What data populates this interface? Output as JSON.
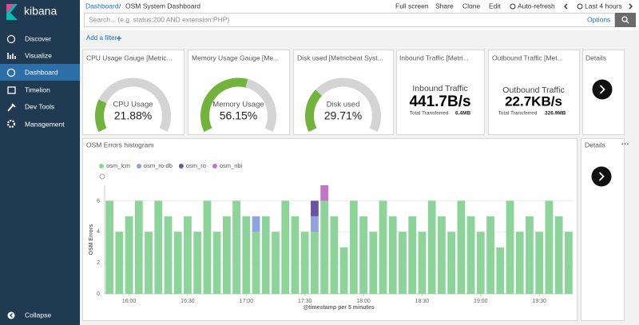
{
  "sidebar": {
    "brand": "kibana",
    "items": [
      "Discover",
      "Visualize",
      "Dashboard",
      "Timelion",
      "Dev Tools",
      "Management"
    ],
    "collapse": "Collapse"
  },
  "header": {
    "breadcrumb": [
      "Dashboard",
      "OSM System Dashboard"
    ],
    "separator": "/",
    "menu": [
      "Full screen",
      "Share",
      "Clone",
      "Edit",
      "Auto-refresh",
      "Last 4 hours"
    ]
  },
  "search": {
    "placeholder": "Search... (e.g. status:200 AND extension:PHP)",
    "options": "Options"
  },
  "filter": {
    "add": "Add a filter"
  },
  "gauges": [
    {
      "title": "CPU Usage Gauge [Metric...",
      "label": "CPU Usage",
      "value": 21.88,
      "value_label": "21.88%",
      "range": [
        0,
        100
      ],
      "color": "#72b33e"
    },
    {
      "title": "Memory Usage Gauge [Me...",
      "label": "Memory Usage",
      "value": 56.15,
      "value_label": "56.15%",
      "range": [
        0,
        100
      ],
      "color": "#72b33e"
    },
    {
      "title": "Disk used [Metricbeat Syst...",
      "label": "Disk used",
      "value": 29.71,
      "value_label": "29.71%",
      "range": [
        0,
        100
      ],
      "color": "#72b33e"
    }
  ],
  "metrics": [
    {
      "title": "Inbound Traffic [Metri...",
      "label": "Inbound Traffic",
      "value": "441.7B/s",
      "total_label": "Total Transferred",
      "total": "6.4MB"
    },
    {
      "title": "Outbound Traffic [Met...",
      "label": "Outbound Traffic",
      "value": "22.7KB/s",
      "total_label": "Total Transferred",
      "total": "326.9MB"
    }
  ],
  "details": [
    {
      "title": "Details"
    },
    {
      "title": "Details"
    }
  ],
  "chart_data": {
    "type": "bar",
    "stacked": true,
    "title": "OSM Errors histogram",
    "x_label": "@timestamp per 5 minutes",
    "y_label": "OSM Errors",
    "categories": [
      null,
      null,
      "16:00",
      null,
      null,
      null,
      null,
      null,
      "16:30",
      null,
      null,
      null,
      null,
      null,
      "17:00",
      null,
      null,
      null,
      null,
      null,
      "17:30",
      null,
      null,
      null,
      null,
      null,
      "18:00",
      null,
      null,
      null,
      null,
      null,
      "18:30",
      null,
      null,
      null,
      null,
      null,
      "19:00",
      null,
      null,
      null,
      null,
      null,
      "19:30",
      null,
      null,
      null
    ],
    "series": [
      {
        "name": "osm_lcm",
        "color": "#8dd49b",
        "values": [
          6,
          4,
          5,
          6,
          4,
          6,
          5,
          4,
          5,
          4,
          6,
          4,
          5,
          6,
          5,
          4,
          5,
          4,
          6,
          5,
          4,
          4,
          6,
          5,
          3,
          6,
          5,
          4,
          6,
          5,
          4,
          5,
          4,
          6,
          5,
          4,
          6,
          5,
          4,
          5,
          3,
          6,
          4,
          5,
          4,
          6,
          5,
          4
        ]
      },
      {
        "name": "osm_ro-db",
        "color": "#8ea3df",
        "values": [
          0,
          0,
          0,
          0,
          0,
          0,
          0,
          0,
          0,
          0,
          0,
          0,
          0,
          0,
          0,
          1,
          0,
          0,
          0,
          0,
          0,
          1,
          0,
          0,
          0,
          0,
          0,
          0,
          0,
          0,
          0,
          0,
          0,
          0,
          0,
          0,
          0,
          0,
          0,
          0,
          0,
          0,
          0,
          0,
          0,
          0,
          0,
          0
        ]
      },
      {
        "name": "osm_ro",
        "color": "#6a52aa",
        "values": [
          0,
          0,
          0,
          0,
          0,
          0,
          0,
          0,
          0,
          0,
          0,
          0,
          0,
          0,
          0,
          0,
          0,
          0,
          0,
          0,
          0,
          1,
          0,
          0,
          0,
          0,
          0,
          0,
          0,
          0,
          0,
          0,
          0,
          0,
          0,
          0,
          0,
          0,
          0,
          0,
          0,
          0,
          0,
          0,
          0,
          0,
          0,
          0
        ]
      },
      {
        "name": "osm_nbi",
        "color": "#c474c8",
        "values": [
          0,
          0,
          0,
          0,
          0,
          0,
          0,
          0,
          0,
          0,
          0,
          0,
          0,
          0,
          0,
          0,
          0,
          0,
          0,
          0,
          0,
          0,
          1,
          0,
          0,
          0,
          0,
          0,
          0,
          0,
          0,
          0,
          0,
          0,
          0,
          0,
          0,
          0,
          0,
          0,
          0,
          0,
          0,
          0,
          0,
          0,
          0,
          0
        ]
      }
    ],
    "ylim": [
      0,
      7
    ],
    "yticks": [
      0,
      2,
      4,
      6
    ],
    "grid": true,
    "legend": "top-left"
  }
}
